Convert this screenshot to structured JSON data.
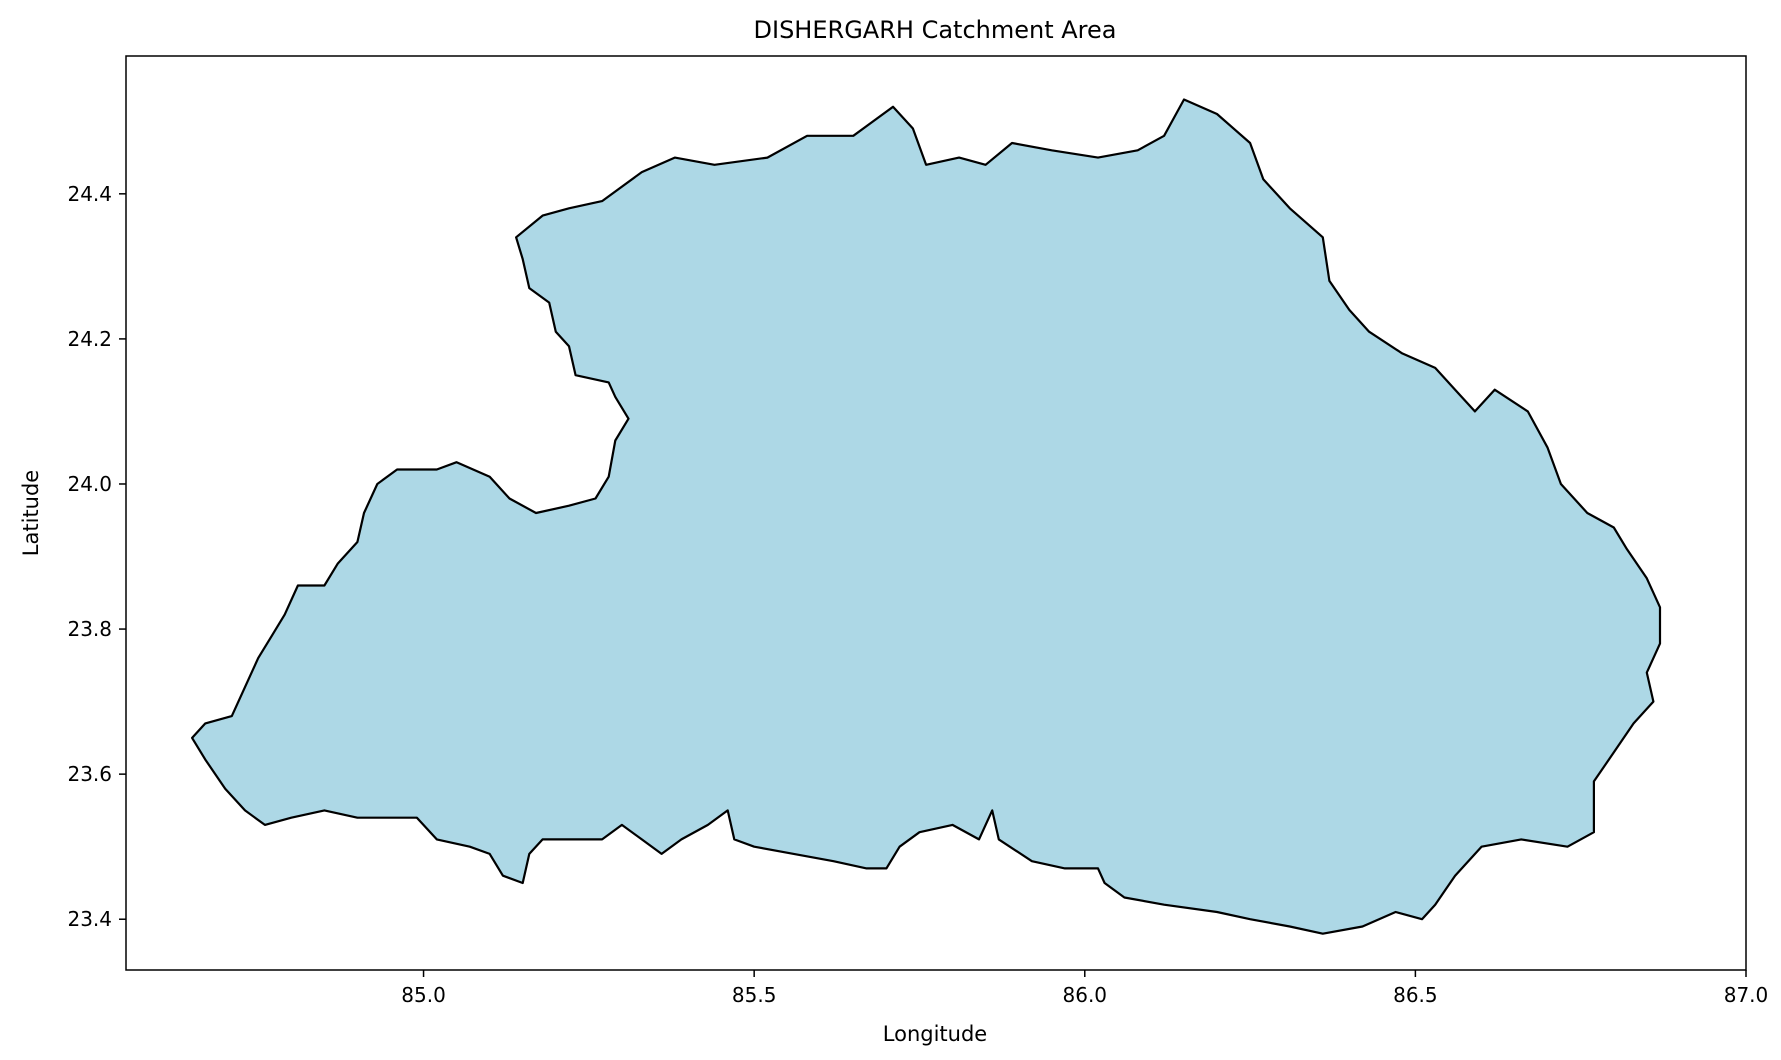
{
  "chart_data": {
    "type": "area",
    "title": "DISHERGARH Catchment Area",
    "xlabel": "Longitude",
    "ylabel": "Latitude",
    "xlim": [
      84.55,
      87.0
    ],
    "ylim": [
      23.33,
      24.59
    ],
    "xticks": [
      85.0,
      85.5,
      86.0,
      86.5,
      87.0
    ],
    "xtick_labels": [
      "85.0",
      "85.5",
      "86.0",
      "86.5",
      "87.0"
    ],
    "yticks": [
      23.4,
      23.6,
      23.8,
      24.0,
      24.2,
      24.4
    ],
    "ytick_labels": [
      "23.4",
      "23.6",
      "23.8",
      "24.0",
      "24.2",
      "24.4"
    ],
    "grid": false,
    "series": [
      {
        "fill": "#add8e6",
        "edge": "#000000",
        "boundary": [
          [
            85.14,
            24.34
          ],
          [
            85.18,
            24.37
          ],
          [
            85.22,
            24.38
          ],
          [
            85.27,
            24.39
          ],
          [
            85.33,
            24.43
          ],
          [
            85.38,
            24.45
          ],
          [
            85.44,
            24.44
          ],
          [
            85.52,
            24.45
          ],
          [
            85.58,
            24.48
          ],
          [
            85.65,
            24.48
          ],
          [
            85.71,
            24.52
          ],
          [
            85.74,
            24.49
          ],
          [
            85.76,
            24.44
          ],
          [
            85.81,
            24.45
          ],
          [
            85.85,
            24.44
          ],
          [
            85.89,
            24.47
          ],
          [
            85.95,
            24.46
          ],
          [
            86.02,
            24.45
          ],
          [
            86.08,
            24.46
          ],
          [
            86.12,
            24.48
          ],
          [
            86.15,
            24.53
          ],
          [
            86.2,
            24.51
          ],
          [
            86.25,
            24.47
          ],
          [
            86.27,
            24.42
          ],
          [
            86.31,
            24.38
          ],
          [
            86.36,
            24.34
          ],
          [
            86.37,
            24.28
          ],
          [
            86.4,
            24.24
          ],
          [
            86.43,
            24.21
          ],
          [
            86.48,
            24.18
          ],
          [
            86.53,
            24.16
          ],
          [
            86.56,
            24.13
          ],
          [
            86.59,
            24.1
          ],
          [
            86.62,
            24.13
          ],
          [
            86.67,
            24.1
          ],
          [
            86.7,
            24.05
          ],
          [
            86.72,
            24.0
          ],
          [
            86.76,
            23.96
          ],
          [
            86.8,
            23.94
          ],
          [
            86.82,
            23.91
          ],
          [
            86.85,
            23.87
          ],
          [
            86.87,
            23.83
          ],
          [
            86.87,
            23.78
          ],
          [
            86.85,
            23.74
          ],
          [
            86.86,
            23.7
          ],
          [
            86.83,
            23.67
          ],
          [
            86.8,
            23.63
          ],
          [
            86.77,
            23.59
          ],
          [
            86.77,
            23.52
          ],
          [
            86.73,
            23.5
          ],
          [
            86.66,
            23.51
          ],
          [
            86.6,
            23.5
          ],
          [
            86.56,
            23.46
          ],
          [
            86.53,
            23.42
          ],
          [
            86.51,
            23.4
          ],
          [
            86.47,
            23.41
          ],
          [
            86.42,
            23.39
          ],
          [
            86.36,
            23.38
          ],
          [
            86.31,
            23.39
          ],
          [
            86.25,
            23.4
          ],
          [
            86.2,
            23.41
          ],
          [
            86.12,
            23.42
          ],
          [
            86.06,
            23.43
          ],
          [
            86.03,
            23.45
          ],
          [
            86.02,
            23.47
          ],
          [
            85.97,
            23.47
          ],
          [
            85.92,
            23.48
          ],
          [
            85.87,
            23.51
          ],
          [
            85.86,
            23.55
          ],
          [
            85.84,
            23.51
          ],
          [
            85.8,
            23.53
          ],
          [
            85.75,
            23.52
          ],
          [
            85.72,
            23.5
          ],
          [
            85.7,
            23.47
          ],
          [
            85.67,
            23.47
          ],
          [
            85.62,
            23.48
          ],
          [
            85.56,
            23.49
          ],
          [
            85.5,
            23.5
          ],
          [
            85.47,
            23.51
          ],
          [
            85.46,
            23.55
          ],
          [
            85.43,
            23.53
          ],
          [
            85.39,
            23.51
          ],
          [
            85.36,
            23.49
          ],
          [
            85.33,
            23.51
          ],
          [
            85.3,
            23.53
          ],
          [
            85.27,
            23.51
          ],
          [
            85.22,
            23.51
          ],
          [
            85.18,
            23.51
          ],
          [
            85.16,
            23.49
          ],
          [
            85.15,
            23.45
          ],
          [
            85.12,
            23.46
          ],
          [
            85.1,
            23.49
          ],
          [
            85.07,
            23.5
          ],
          [
            85.02,
            23.51
          ],
          [
            84.99,
            23.54
          ],
          [
            84.95,
            23.54
          ],
          [
            84.9,
            23.54
          ],
          [
            84.85,
            23.55
          ],
          [
            84.8,
            23.54
          ],
          [
            84.76,
            23.53
          ],
          [
            84.73,
            23.55
          ],
          [
            84.7,
            23.58
          ],
          [
            84.67,
            23.62
          ],
          [
            84.65,
            23.65
          ],
          [
            84.67,
            23.67
          ],
          [
            84.71,
            23.68
          ],
          [
            84.73,
            23.72
          ],
          [
            84.75,
            23.76
          ],
          [
            84.77,
            23.79
          ],
          [
            84.79,
            23.82
          ],
          [
            84.81,
            23.86
          ],
          [
            84.85,
            23.86
          ],
          [
            84.87,
            23.89
          ],
          [
            84.9,
            23.92
          ],
          [
            84.91,
            23.96
          ],
          [
            84.93,
            24.0
          ],
          [
            84.96,
            24.02
          ],
          [
            85.02,
            24.02
          ],
          [
            85.05,
            24.03
          ],
          [
            85.1,
            24.01
          ],
          [
            85.13,
            23.98
          ],
          [
            85.17,
            23.96
          ],
          [
            85.22,
            23.97
          ],
          [
            85.26,
            23.98
          ],
          [
            85.28,
            24.01
          ],
          [
            85.29,
            24.06
          ],
          [
            85.31,
            24.09
          ],
          [
            85.29,
            24.12
          ],
          [
            85.28,
            24.14
          ],
          [
            85.23,
            24.15
          ],
          [
            85.22,
            24.19
          ],
          [
            85.2,
            24.21
          ],
          [
            85.19,
            24.25
          ],
          [
            85.16,
            24.27
          ],
          [
            85.15,
            24.31
          ],
          [
            85.14,
            24.34
          ]
        ]
      }
    ]
  }
}
